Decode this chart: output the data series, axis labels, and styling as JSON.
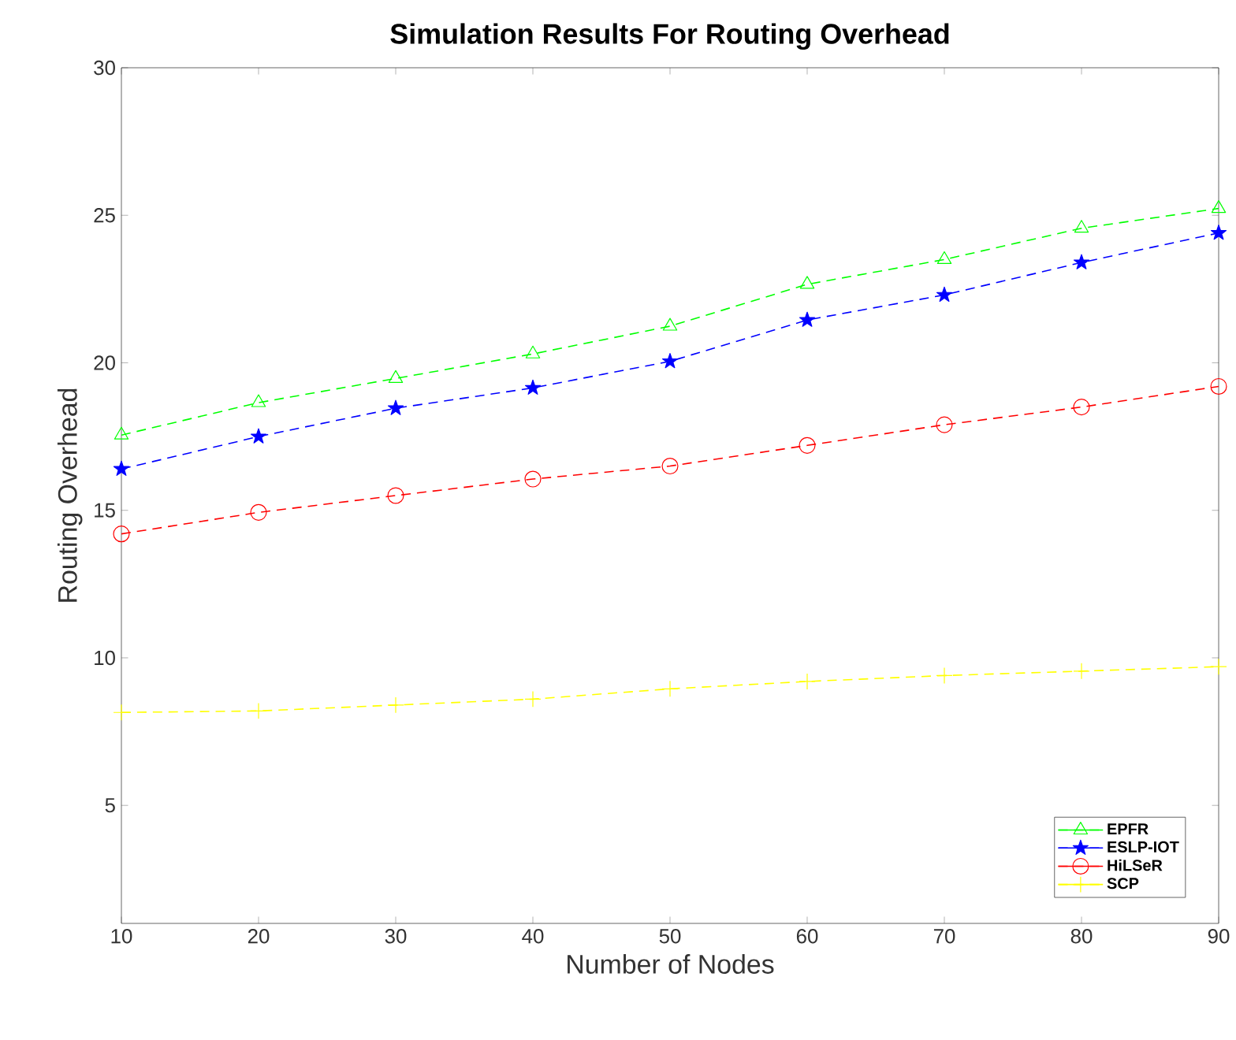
{
  "chart_data": {
    "type": "line",
    "title": "Simulation Results For Routing Overhead",
    "xlabel": "Number of Nodes",
    "ylabel": "Routing Overhead",
    "x": [
      10,
      20,
      30,
      40,
      50,
      60,
      70,
      80,
      90
    ],
    "series": [
      {
        "name": "EPFR",
        "color": "#00ff00",
        "marker": "triangle",
        "values": [
          17.55,
          18.65,
          19.47,
          20.3,
          21.24,
          22.66,
          23.5,
          24.56,
          25.23
        ]
      },
      {
        "name": "ESLP-IOT",
        "color": "#0000ff",
        "marker": "star",
        "values": [
          16.4,
          17.5,
          18.46,
          19.15,
          20.05,
          21.45,
          22.3,
          23.4,
          24.4
        ]
      },
      {
        "name": "HiLSeR",
        "color": "#ff0000",
        "marker": "circle",
        "values": [
          14.2,
          14.93,
          15.5,
          16.06,
          16.5,
          17.2,
          17.9,
          18.5,
          19.2
        ]
      },
      {
        "name": "SCP",
        "color": "#ffff00",
        "marker": "cross",
        "values": [
          8.15,
          8.2,
          8.4,
          8.6,
          8.95,
          9.2,
          9.4,
          9.55,
          9.7
        ]
      }
    ],
    "xlim": [
      10,
      90
    ],
    "xticks": [
      10,
      20,
      30,
      40,
      50,
      60,
      70,
      80,
      90
    ],
    "ylim": [
      1,
      30
    ],
    "yticks": [
      5,
      10,
      15,
      20,
      25,
      30
    ],
    "line_style": "dashed",
    "legend": "bottom right",
    "grid": false
  }
}
